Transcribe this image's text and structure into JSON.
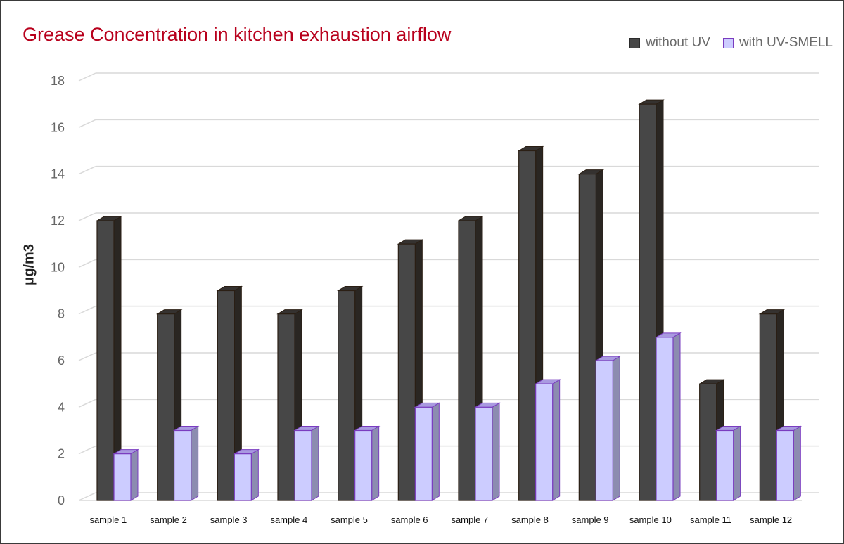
{
  "chart_data": {
    "type": "bar",
    "title": "Grease Concentration in kitchen exhaustion airflow",
    "ylabel": "μg/m3",
    "xlabel": "",
    "ylim": [
      0,
      18
    ],
    "yticks": [
      0,
      2,
      4,
      6,
      8,
      10,
      12,
      14,
      16,
      18
    ],
    "grid": true,
    "legend_position": "top-right",
    "categories": [
      "sample 1",
      "sample 2",
      "sample 3",
      "sample 4",
      "sample 5",
      "sample 6",
      "sample 7",
      "sample 8",
      "sample 9",
      "sample 10",
      "sample 11",
      "sample 12"
    ],
    "series": [
      {
        "name": "without UV",
        "values": [
          12,
          8,
          9,
          8,
          9,
          11,
          12,
          15,
          14,
          17,
          5,
          8
        ],
        "color": "#474747"
      },
      {
        "name": "with UV-SMELL",
        "values": [
          2,
          3,
          2,
          3,
          3,
          4,
          4,
          5,
          6,
          7,
          3,
          3
        ],
        "color": "#ccccff"
      }
    ]
  }
}
